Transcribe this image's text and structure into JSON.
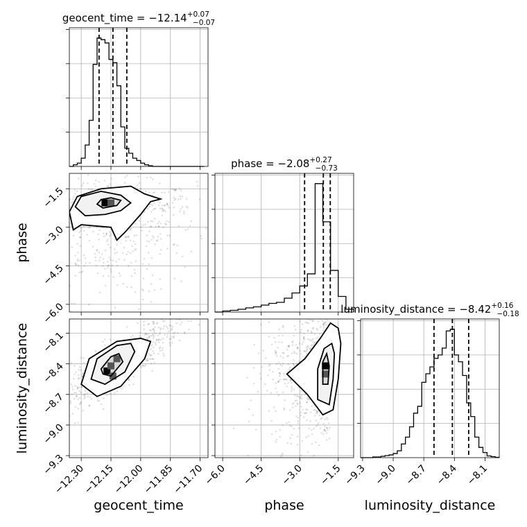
{
  "chart_data": {
    "type": "corner",
    "parameters": [
      "geocent_time",
      "phase",
      "luminosity_distance"
    ],
    "titles": [
      {
        "param": "geocent_time",
        "median": "−12.14",
        "plus": "+0.07",
        "minus": "−0.07"
      },
      {
        "param": "phase",
        "median": "−2.08",
        "plus": "+0.27",
        "minus": "−0.73"
      },
      {
        "param": "luminosity_distance",
        "median": "−8.42",
        "plus": "+0.16",
        "minus": "−0.18"
      }
    ],
    "axes": {
      "geocent_time": {
        "range": [
          -12.36,
          -11.66
        ],
        "ticks": [
          -12.3,
          -12.15,
          -12.0,
          -11.85,
          -11.7
        ],
        "tick_labels": [
          "−12.30",
          "−12.15",
          "−12.00",
          "−11.85",
          "−11.70"
        ]
      },
      "phase": {
        "range": [
          -6.3,
          -0.9
        ],
        "ticks": [
          -6.0,
          -4.5,
          -3.0,
          -1.5
        ],
        "tick_labels": [
          "−6.0",
          "−4.5",
          "−3.0",
          "−1.5"
        ]
      },
      "luminosity_distance": {
        "range": [
          -9.32,
          -7.96
        ],
        "ticks": [
          -9.3,
          -9.0,
          -8.7,
          -8.4,
          -8.1
        ],
        "tick_labels": [
          "−9.3",
          "−9.0",
          "−8.7",
          "−8.4",
          "−8.1"
        ]
      }
    },
    "histograms": [
      {
        "param": "geocent_time",
        "bin_edges": [
          -12.36,
          -12.34,
          -12.32,
          -12.3,
          -12.28,
          -12.26,
          -12.24,
          -12.22,
          -12.2,
          -12.18,
          -12.16,
          -12.14,
          -12.12,
          -12.1,
          -12.08,
          -12.06,
          -12.04,
          -12.02,
          -12.0,
          -11.98,
          -11.96,
          -11.94,
          -11.92,
          -11.9,
          -11.88,
          -11.86,
          -11.84,
          -11.82,
          -11.8,
          -11.78,
          -11.76,
          -11.74,
          -11.72,
          -11.7,
          -11.68
        ],
        "counts": [
          0,
          5,
          10,
          25,
          65,
          140,
          310,
          390,
          385,
          375,
          325,
          315,
          245,
          120,
          55,
          40,
          25,
          18,
          10,
          5,
          2,
          0,
          0,
          0,
          0,
          0,
          0,
          0,
          0,
          0,
          0,
          0,
          0,
          0
        ],
        "quantiles": [
          -12.21,
          -12.14,
          -12.07
        ]
      },
      {
        "param": "phase",
        "bin_edges": [
          -6.3,
          -6.0,
          -5.7,
          -5.4,
          -5.1,
          -4.8,
          -4.5,
          -4.2,
          -3.9,
          -3.6,
          -3.3,
          -3.0,
          -2.7,
          -2.4,
          -2.1,
          -1.8,
          -1.5,
          -1.2,
          -0.9
        ],
        "counts": [
          0,
          3,
          5,
          8,
          12,
          15,
          20,
          25,
          28,
          40,
          55,
          75,
          110,
          370,
          260,
          120,
          45,
          8
        ],
        "quantiles": [
          -2.81,
          -2.08,
          -1.81
        ]
      },
      {
        "param": "luminosity_distance",
        "bin_edges": [
          -9.32,
          -9.28,
          -9.24,
          -9.2,
          -9.16,
          -9.12,
          -9.08,
          -9.04,
          -9.0,
          -8.96,
          -8.92,
          -8.88,
          -8.84,
          -8.8,
          -8.76,
          -8.72,
          -8.68,
          -8.64,
          -8.6,
          -8.56,
          -8.52,
          -8.48,
          -8.44,
          -8.4,
          -8.36,
          -8.32,
          -8.28,
          -8.24,
          -8.2,
          -8.16,
          -8.12,
          -8.08,
          -8.04,
          -8.0,
          -7.96
        ],
        "counts": [
          0,
          0,
          0,
          2,
          2,
          4,
          6,
          8,
          12,
          20,
          40,
          60,
          90,
          130,
          150,
          220,
          245,
          265,
          290,
          300,
          320,
          370,
          375,
          300,
          280,
          240,
          160,
          120,
          60,
          30,
          15,
          5,
          3,
          1
        ],
        "quantiles": [
          -8.6,
          -8.42,
          -8.26
        ]
      }
    ],
    "pairs": [
      {
        "x": "geocent_time",
        "y": "phase",
        "density_peaks": [
          [
            -12.18,
            -2.05
          ],
          [
            -12.15,
            -2.05
          ]
        ],
        "contours": [
          [
            [
              -12.19,
              -2.25
            ],
            [
              -12.12,
              -2.15
            ],
            [
              -12.1,
              -1.95
            ],
            [
              -12.15,
              -1.85
            ],
            [
              -12.2,
              -1.92
            ],
            [
              -12.22,
              -2.1
            ]
          ],
          [
            [
              -12.28,
              -2.55
            ],
            [
              -12.18,
              -2.5
            ],
            [
              -12.1,
              -2.35
            ],
            [
              -12.05,
              -2.05
            ],
            [
              -12.1,
              -1.75
            ],
            [
              -12.2,
              -1.6
            ],
            [
              -12.3,
              -1.8
            ],
            [
              -12.33,
              -2.2
            ]
          ],
          [
            [
              -12.34,
              -3.1
            ],
            [
              -12.3,
              -2.9
            ],
            [
              -12.15,
              -3.0
            ],
            [
              -12.12,
              -3.5
            ],
            [
              -12.08,
              -3.2
            ],
            [
              -12.0,
              -2.5
            ],
            [
              -11.95,
              -2.0
            ],
            [
              -11.9,
              -1.9
            ],
            [
              -11.98,
              -1.7
            ],
            [
              -12.05,
              -1.4
            ],
            [
              -12.2,
              -1.5
            ],
            [
              -12.32,
              -1.8
            ],
            [
              -12.36,
              -2.4
            ]
          ]
        ]
      },
      {
        "x": "geocent_time",
        "y": "luminosity_distance",
        "density_peaks": [
          [
            -12.17,
            -8.47
          ],
          [
            -12.15,
            -8.42
          ],
          [
            -12.12,
            -8.35
          ],
          [
            -12.14,
            -8.52
          ]
        ],
        "contours": [
          [
            [
              -12.19,
              -8.5
            ],
            [
              -12.15,
              -8.52
            ],
            [
              -12.09,
              -8.38
            ],
            [
              -12.11,
              -8.3
            ],
            [
              -12.15,
              -8.33
            ],
            [
              -12.2,
              -8.45
            ]
          ],
          [
            [
              -12.25,
              -8.55
            ],
            [
              -12.18,
              -8.6
            ],
            [
              -12.08,
              -8.48
            ],
            [
              -12.03,
              -8.28
            ],
            [
              -12.05,
              -8.2
            ],
            [
              -12.12,
              -8.22
            ],
            [
              -12.22,
              -8.35
            ]
          ],
          [
            [
              -12.3,
              -8.6
            ],
            [
              -12.22,
              -8.72
            ],
            [
              -12.1,
              -8.62
            ],
            [
              -11.98,
              -8.35
            ],
            [
              -11.95,
              -8.18
            ],
            [
              -12.0,
              -8.15
            ],
            [
              -12.12,
              -8.18
            ],
            [
              -12.26,
              -8.35
            ]
          ]
        ]
      },
      {
        "x": "phase",
        "y": "luminosity_distance",
        "density_peaks": [
          [
            -2.0,
            -8.42
          ],
          [
            -2.0,
            -8.5
          ]
        ],
        "contours": [
          [
            [
              -2.1,
              -8.6
            ],
            [
              -1.9,
              -8.6
            ],
            [
              -1.85,
              -8.42
            ],
            [
              -1.95,
              -8.3
            ],
            [
              -2.1,
              -8.38
            ]
          ],
          [
            [
              -2.3,
              -8.75
            ],
            [
              -1.85,
              -8.8
            ],
            [
              -1.7,
              -8.55
            ],
            [
              -1.65,
              -8.3
            ],
            [
              -1.75,
              -8.2
            ],
            [
              -2.05,
              -8.25
            ],
            [
              -2.3,
              -8.45
            ]
          ],
          [
            [
              -3.5,
              -8.5
            ],
            [
              -2.7,
              -8.7
            ],
            [
              -2.1,
              -8.9
            ],
            [
              -1.7,
              -8.85
            ],
            [
              -1.5,
              -8.55
            ],
            [
              -1.4,
              -8.2
            ],
            [
              -1.5,
              -8.05
            ],
            [
              -1.8,
              -8.0
            ],
            [
              -2.2,
              -8.15
            ],
            [
              -2.8,
              -8.35
            ]
          ]
        ]
      }
    ],
    "grid": true,
    "xlabels": [
      "geocent_time",
      "phase",
      "luminosity_distance"
    ],
    "ylabels": [
      "phase",
      "luminosity_distance"
    ]
  }
}
